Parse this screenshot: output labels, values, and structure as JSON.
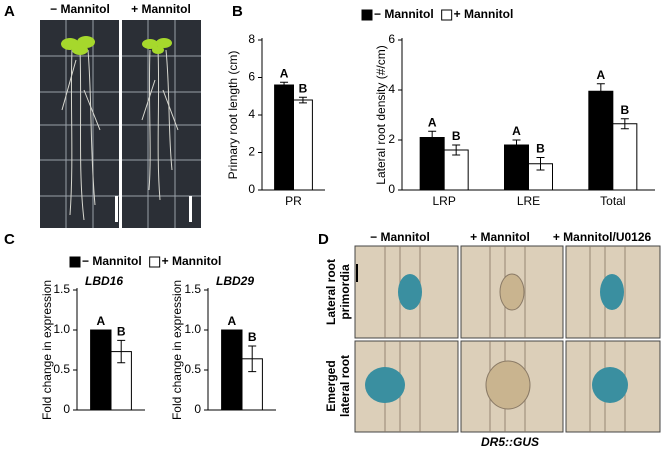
{
  "panels": {
    "A": {
      "label": "A",
      "captions": [
        "− Mannitol",
        "+ Mannitol"
      ]
    },
    "B": {
      "label": "B"
    },
    "C": {
      "label": "C"
    },
    "D": {
      "label": "D",
      "columns": [
        "− Mannitol",
        "+ Mannitol",
        "+ Mannitol/U0126"
      ],
      "rows": [
        [
          "Lateral root",
          "primordia"
        ],
        [
          "Emerged",
          "lateral root"
        ]
      ],
      "footer": "DR5::GUS"
    }
  },
  "chart_data": [
    {
      "type": "bar",
      "y_label": "Primary root length (cm)",
      "categories": [
        "PR"
      ],
      "series": [
        {
          "color": "#000000",
          "values": [
            5.6
          ],
          "errors": [
            0.15
          ],
          "letters": [
            "A"
          ]
        },
        {
          "color": "#ffffff",
          "values": [
            4.8
          ],
          "errors": [
            0.15
          ],
          "letters": [
            "B"
          ]
        }
      ],
      "ylim": [
        0,
        8
      ],
      "yticks": [
        0,
        2,
        4,
        6,
        8
      ]
    },
    {
      "type": "bar",
      "y_label": "Lateral root density (#/cm)",
      "categories": [
        "LRP",
        "LRE",
        "Total"
      ],
      "series": [
        {
          "name": "− Mannitol",
          "color": "#000000",
          "values": [
            2.1,
            1.8,
            3.95
          ],
          "errors": [
            0.25,
            0.2,
            0.3
          ],
          "letters": [
            "A",
            "A",
            "A"
          ]
        },
        {
          "name": "+ Mannitol",
          "color": "#ffffff",
          "values": [
            1.6,
            1.05,
            2.65
          ],
          "errors": [
            0.2,
            0.25,
            0.2
          ],
          "letters": [
            "B",
            "B",
            "B"
          ]
        }
      ],
      "ylim": [
        0,
        6
      ],
      "yticks": [
        0,
        2,
        4,
        6
      ],
      "legend": true
    },
    {
      "type": "bar",
      "title": "LBD16",
      "y_label": "Fold change in expression",
      "categories": [
        null
      ],
      "series": [
        {
          "name": "− Mannitol",
          "color": "#000000",
          "values": [
            1.0
          ],
          "errors": [
            0
          ],
          "letters": [
            "A"
          ]
        },
        {
          "name": "+ Mannitol",
          "color": "#ffffff",
          "values": [
            0.73
          ],
          "errors": [
            0.14
          ],
          "letters": [
            "B"
          ]
        }
      ],
      "ylim": [
        0,
        1.5
      ],
      "yticks": [
        0,
        0.5,
        {
          "value": 1,
          "label": "1.0"
        },
        1.5
      ],
      "legend": true
    },
    {
      "type": "bar",
      "title": "LBD29",
      "y_label": "Fold change in expression",
      "categories": [
        null
      ],
      "series": [
        {
          "color": "#000000",
          "values": [
            1.0
          ],
          "errors": [
            0
          ],
          "letters": [
            "A"
          ]
        },
        {
          "color": "#ffffff",
          "values": [
            0.64
          ],
          "errors": [
            0.16
          ],
          "letters": [
            "B"
          ]
        }
      ],
      "ylim": [
        0,
        1.5
      ],
      "yticks": [
        0,
        0.5,
        {
          "value": 1,
          "label": "1.0"
        },
        1.5
      ]
    }
  ]
}
